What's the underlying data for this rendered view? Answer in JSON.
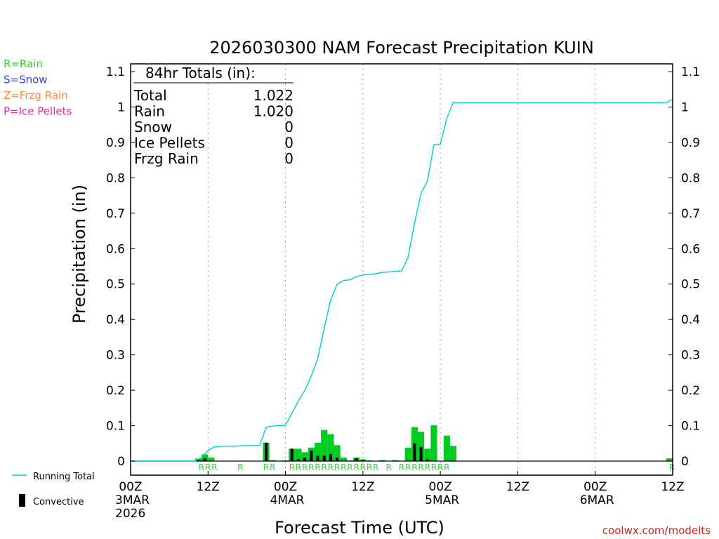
{
  "chart_data": {
    "type": "bar",
    "title": "2026030300 NAM Forecast Precipitation KUIN",
    "xlabel": "Forecast Time (UTC)",
    "ylabel": "Precipitation (in)",
    "ylim": [
      0,
      1.1
    ],
    "yticks": [
      "0",
      "0.1",
      "0.2",
      "0.3",
      "0.4",
      "0.5",
      "0.6",
      "0.7",
      "0.8",
      "0.9",
      "1",
      "1.1"
    ],
    "xlim_hours": [
      0,
      84
    ],
    "xticks": [
      {
        "h": 0,
        "lines": [
          "00Z",
          "3MAR",
          "2026"
        ]
      },
      {
        "h": 12,
        "lines": [
          "12Z"
        ]
      },
      {
        "h": 24,
        "lines": [
          "00Z",
          "4MAR"
        ]
      },
      {
        "h": 36,
        "lines": [
          "12Z"
        ]
      },
      {
        "h": 48,
        "lines": [
          "00Z",
          "5MAR"
        ]
      },
      {
        "h": 60,
        "lines": [
          "12Z"
        ]
      },
      {
        "h": 72,
        "lines": [
          "00Z",
          "6MAR"
        ]
      },
      {
        "h": 84,
        "lines": [
          "12Z"
        ]
      }
    ],
    "legend_precip_types": [
      {
        "label": "R=Rain",
        "color": "#22dd22"
      },
      {
        "label": "S=Snow",
        "color": "#3344dd"
      },
      {
        "label": "Z=Frzg Rain",
        "color": "#ff8833"
      },
      {
        "label": "P=Ice Pellets",
        "color": "#ee2299"
      }
    ],
    "legend_series": [
      {
        "label": "Running Total",
        "color": "#00cccc"
      },
      {
        "label": "Convective",
        "color": "#000000"
      }
    ],
    "totals_box": {
      "heading": "84hr Totals (in):",
      "rows": [
        {
          "label": "Total",
          "value": "1.022"
        },
        {
          "label": "Rain",
          "value": "1.020"
        },
        {
          "label": "Snow",
          "value": "0"
        },
        {
          "label": "Ice Pellets",
          "value": "0"
        },
        {
          "label": "Frzg Rain",
          "value": "0"
        }
      ]
    },
    "precip_bars": [
      {
        "h": 10.5,
        "total": 0.007,
        "convective": 0.003
      },
      {
        "h": 11.5,
        "total": 0.019,
        "convective": 0.008
      },
      {
        "h": 12.5,
        "total": 0.01,
        "convective": 0.0
      },
      {
        "h": 21,
        "total": 0.052,
        "convective": 0.052
      },
      {
        "h": 22,
        "total": 0.003,
        "convective": 0.0
      },
      {
        "h": 24,
        "total": 0.002,
        "convective": 0.0
      },
      {
        "h": 25,
        "total": 0.035,
        "convective": 0.035
      },
      {
        "h": 26,
        "total": 0.035,
        "convective": 0.005
      },
      {
        "h": 27,
        "total": 0.025,
        "convective": 0.01
      },
      {
        "h": 28,
        "total": 0.038,
        "convective": 0.03
      },
      {
        "h": 29,
        "total": 0.052,
        "convective": 0.015
      },
      {
        "h": 30,
        "total": 0.088,
        "convective": 0.015
      },
      {
        "h": 31,
        "total": 0.076,
        "convective": 0.02
      },
      {
        "h": 32,
        "total": 0.045,
        "convective": 0.01
      },
      {
        "h": 33,
        "total": 0.01,
        "convective": 0.0
      },
      {
        "h": 34,
        "total": 0.002,
        "convective": 0.0
      },
      {
        "h": 35,
        "total": 0.01,
        "convective": 0.008
      },
      {
        "h": 36,
        "total": 0.005,
        "convective": 0.003
      },
      {
        "h": 37,
        "total": 0.002,
        "convective": 0.0
      },
      {
        "h": 39,
        "total": 0.003,
        "convective": 0.0
      },
      {
        "h": 41,
        "total": 0.003,
        "convective": 0.0
      },
      {
        "h": 43,
        "total": 0.038,
        "convective": 0.0
      },
      {
        "h": 44,
        "total": 0.096,
        "convective": 0.05
      },
      {
        "h": 45,
        "total": 0.083,
        "convective": 0.04
      },
      {
        "h": 46,
        "total": 0.035,
        "convective": 0.005
      },
      {
        "h": 47,
        "total": 0.101,
        "convective": 0.0
      },
      {
        "h": 49,
        "total": 0.072,
        "convective": 0.0
      },
      {
        "h": 50,
        "total": 0.043,
        "convective": 0.0
      },
      {
        "h": 83.5,
        "total": 0.008,
        "convective": 0.0
      }
    ],
    "precip_type_marks": [
      {
        "h": 11,
        "label": "R"
      },
      {
        "h": 12,
        "label": "R"
      },
      {
        "h": 13,
        "label": "R"
      },
      {
        "h": 17,
        "label": "R"
      },
      {
        "h": 21,
        "label": "R"
      },
      {
        "h": 22,
        "label": "R"
      },
      {
        "h": 25,
        "label": "R"
      },
      {
        "h": 26,
        "label": "R"
      },
      {
        "h": 27,
        "label": "R"
      },
      {
        "h": 28,
        "label": "R"
      },
      {
        "h": 29,
        "label": "R"
      },
      {
        "h": 30,
        "label": "R"
      },
      {
        "h": 31,
        "label": "R"
      },
      {
        "h": 32,
        "label": "R"
      },
      {
        "h": 33,
        "label": "R"
      },
      {
        "h": 34,
        "label": "R"
      },
      {
        "h": 35,
        "label": "R"
      },
      {
        "h": 36,
        "label": "R"
      },
      {
        "h": 37,
        "label": "R"
      },
      {
        "h": 38,
        "label": "R"
      },
      {
        "h": 40,
        "label": "R"
      },
      {
        "h": 42,
        "label": "R"
      },
      {
        "h": 43,
        "label": "R"
      },
      {
        "h": 44,
        "label": "R"
      },
      {
        "h": 45,
        "label": "R"
      },
      {
        "h": 46,
        "label": "R"
      },
      {
        "h": 47,
        "label": "R"
      },
      {
        "h": 48,
        "label": "R"
      },
      {
        "h": 49,
        "label": "R"
      },
      {
        "h": 84,
        "label": "R"
      }
    ],
    "running_total": [
      [
        0,
        0
      ],
      [
        10,
        0
      ],
      [
        11,
        0.01
      ],
      [
        12,
        0.03
      ],
      [
        13,
        0.04
      ],
      [
        14,
        0.042
      ],
      [
        16,
        0.042
      ],
      [
        17,
        0.043
      ],
      [
        18,
        0.044
      ],
      [
        20,
        0.044
      ],
      [
        21,
        0.096
      ],
      [
        22,
        0.099
      ],
      [
        23,
        0.1
      ],
      [
        24,
        0.101
      ],
      [
        25,
        0.135
      ],
      [
        26,
        0.17
      ],
      [
        27,
        0.2
      ],
      [
        28,
        0.24
      ],
      [
        29,
        0.29
      ],
      [
        30,
        0.375
      ],
      [
        31,
        0.455
      ],
      [
        32,
        0.5
      ],
      [
        33,
        0.51
      ],
      [
        34,
        0.512
      ],
      [
        35,
        0.521
      ],
      [
        36,
        0.526
      ],
      [
        37,
        0.527
      ],
      [
        38,
        0.529
      ],
      [
        39,
        0.533
      ],
      [
        40,
        0.534
      ],
      [
        41,
        0.536
      ],
      [
        42,
        0.537
      ],
      [
        43,
        0.575
      ],
      [
        44,
        0.672
      ],
      [
        45,
        0.756
      ],
      [
        46,
        0.791
      ],
      [
        47,
        0.893
      ],
      [
        48,
        0.895
      ],
      [
        49,
        0.968
      ],
      [
        50,
        1.012
      ],
      [
        83,
        1.012
      ],
      [
        84,
        1.022
      ]
    ],
    "grid": "dotted-vertical",
    "legend_placement": "left"
  },
  "footer": {
    "watermark": "coolwx.com/modelts"
  }
}
